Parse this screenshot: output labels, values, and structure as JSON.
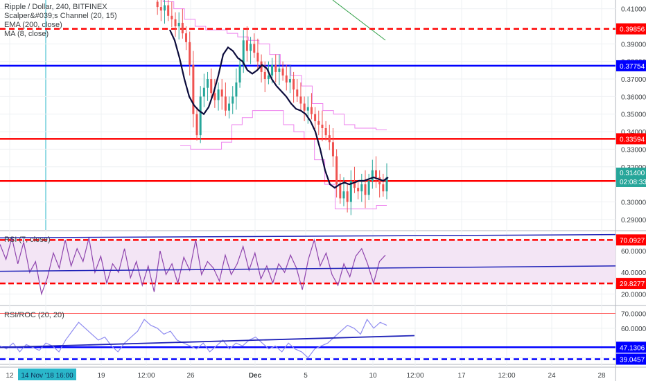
{
  "chart_data": [
    {
      "type": "candlestick",
      "symbol_line": "Ripple / Dollar, 240, BITFINEX",
      "indicators": [
        "Scalper&#039;s Channel (20, 15)",
        "EMA (200, close)",
        "MA (8, close)"
      ],
      "ylim": [
        0.284,
        0.415
      ],
      "y_ticks": [
        "0.41000",
        "0.39000",
        "0.38000",
        "0.37000",
        "0.36000",
        "0.35000",
        "0.34000",
        "0.33000",
        "0.32000",
        "0.30000",
        "0.29000"
      ],
      "price_markers": [
        {
          "value": 0.39856,
          "label": "0.39856",
          "color": "#ff0000",
          "style": "dashed"
        },
        {
          "value": 0.37754,
          "label": "0.37754",
          "color": "#0000ff",
          "style": "solid"
        },
        {
          "value": 0.33594,
          "label": "0.33594",
          "color": "#ff0000",
          "style": "solid"
        },
        {
          "value": 0.31193,
          "label": "0.31193",
          "color": "#ff0000",
          "style": "solid"
        }
      ],
      "last_price": {
        "value": 0.314,
        "label": "0.31400",
        "countdown": "02:08:33",
        "color": "#26a69a"
      },
      "close_series": [
        0.414,
        0.411,
        0.409,
        0.412,
        0.406,
        0.404,
        0.4,
        0.402,
        0.396,
        0.391,
        0.378,
        0.35,
        0.338,
        0.36,
        0.365,
        0.37,
        0.362,
        0.358,
        0.364,
        0.36,
        0.352,
        0.356,
        0.36,
        0.368,
        0.378,
        0.392,
        0.386,
        0.39,
        0.385,
        0.38,
        0.374,
        0.37,
        0.372,
        0.378,
        0.374,
        0.376,
        0.372,
        0.368,
        0.37,
        0.364,
        0.36,
        0.356,
        0.352,
        0.354,
        0.35,
        0.346,
        0.344,
        0.342,
        0.338,
        0.334,
        0.326,
        0.31,
        0.302,
        0.306,
        0.3,
        0.312,
        0.308,
        0.306,
        0.31,
        0.304,
        0.312,
        0.318,
        0.314,
        0.31,
        0.306,
        0.314
      ],
      "ma_series": [
        0.398,
        0.392,
        0.382,
        0.37,
        0.36,
        0.355,
        0.352,
        0.35,
        0.354,
        0.362,
        0.372,
        0.384,
        0.388,
        0.386,
        0.382,
        0.38,
        0.375,
        0.373,
        0.375,
        0.378,
        0.376,
        0.37,
        0.366,
        0.363,
        0.36,
        0.356,
        0.353,
        0.352,
        0.35,
        0.346,
        0.34,
        0.33,
        0.318,
        0.31,
        0.308,
        0.31,
        0.311,
        0.31,
        0.311,
        0.312,
        0.312,
        0.313,
        0.314,
        0.313,
        0.312,
        0.314
      ],
      "channel_upper": [
        0.418,
        0.414,
        0.41,
        0.404,
        0.4,
        0.398,
        0.398,
        0.396,
        0.394,
        0.392,
        0.39,
        0.384,
        0.378,
        0.372,
        0.366,
        0.356,
        0.352,
        0.35,
        0.344,
        0.342,
        0.342,
        0.341
      ],
      "channel_lower": [
        0.332,
        0.33,
        0.33,
        0.33,
        0.334,
        0.344,
        0.348,
        0.352,
        0.352,
        0.352,
        0.344,
        0.34,
        0.336,
        0.324,
        0.31,
        0.296,
        0.296,
        0.296,
        0.296,
        0.298
      ],
      "ema_start": [
        0.414,
        0.404
      ]
    },
    {
      "type": "line",
      "label": "RSI (7, close)",
      "ylim": [
        10,
        78
      ],
      "y_ticks": [
        "60.0000",
        "40.0000",
        "20.0000"
      ],
      "band": [
        29.8277,
        70.0927
      ],
      "markers": [
        {
          "value": 70.0927,
          "label": "70.0927",
          "color": "#ff0000"
        },
        {
          "value": 29.8277,
          "label": "29.8277",
          "color": "#ff0000"
        }
      ],
      "values": [
        66,
        52,
        72,
        48,
        68,
        40,
        50,
        20,
        35,
        58,
        44,
        70,
        46,
        62,
        50,
        72,
        40,
        55,
        30,
        48,
        40,
        62,
        35,
        50,
        28,
        46,
        22,
        60,
        38,
        48,
        30,
        54,
        42,
        70,
        38,
        50,
        44,
        32,
        56,
        38,
        48,
        64,
        42,
        58,
        34,
        46,
        30,
        48,
        40,
        56,
        44,
        24,
        52,
        70,
        46,
        58,
        38,
        28,
        48,
        36,
        55,
        62,
        48,
        30,
        50,
        56
      ],
      "trendline_upper": [
        72,
        75
      ],
      "trendline_lower": [
        41,
        46
      ]
    },
    {
      "type": "line",
      "label": "RSI/ROC (20, 20)",
      "ylim": [
        36,
        74
      ],
      "y_ticks": [
        "70.0000",
        "60.0000",
        "40.0000"
      ],
      "markers": [
        {
          "value": 47.1306,
          "label": "47.1306",
          "color": "#0000ff",
          "style": "solid"
        },
        {
          "value": 39.0457,
          "label": "39.0457",
          "color": "#0000ff",
          "style": "dashed"
        }
      ],
      "values": [
        48,
        46,
        50,
        44,
        49,
        47,
        45,
        50,
        48,
        44,
        52,
        58,
        64,
        60,
        56,
        52,
        54,
        48,
        44,
        50,
        54,
        58,
        66,
        62,
        60,
        56,
        58,
        52,
        50,
        48,
        46,
        50,
        44,
        48,
        52,
        46,
        50,
        48,
        52,
        54,
        50,
        46,
        48,
        44,
        50,
        46,
        44,
        40,
        46,
        48,
        50,
        54,
        58,
        62,
        60,
        56,
        66,
        60,
        64,
        62
      ],
      "trendline": [
        47,
        55
      ]
    }
  ],
  "x_axis": {
    "labels": [
      "12",
      "14 Nov '18 · 16:00",
      "19",
      "12:00",
      "26",
      "Dec",
      "5",
      "10",
      "12:00",
      "17",
      "12:00",
      "24",
      "28"
    ],
    "highlight": "14 Nov '18 · 16:00",
    "vertical_marker_label": "14 Nov '18 · 16:00"
  }
}
